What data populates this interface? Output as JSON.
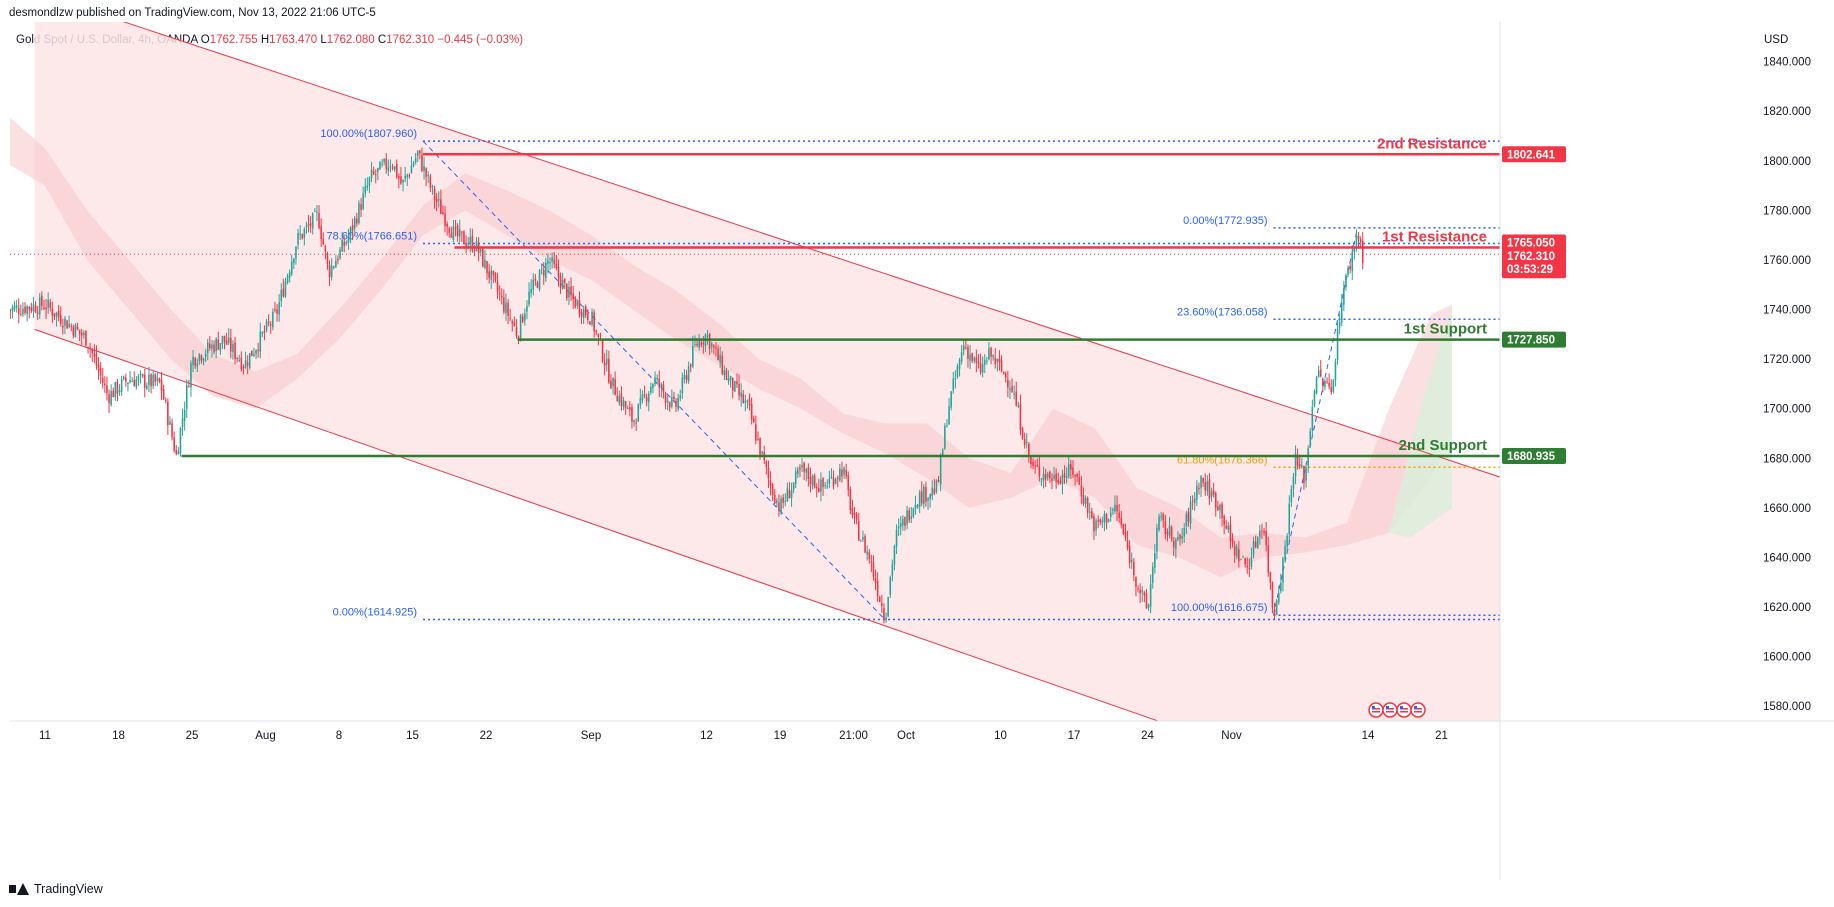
{
  "header": {
    "credit": "desmondlzw published on TradingView.com, Nov 13, 2022 21:06 UTC-5",
    "symbol": "Gold Spot / U.S. Dollar, 4h, OANDA",
    "ohlc": [
      {
        "k": "O",
        "v": "1762.755"
      },
      {
        "k": "H",
        "v": "1763.470"
      },
      {
        "k": "L",
        "v": "1762.080"
      },
      {
        "k": "C",
        "v": "1762.310"
      }
    ],
    "change": "−0.445 (−0.03%)",
    "currency": "USD"
  },
  "footer": {
    "brand": "TradingView"
  },
  "colors": {
    "up": "#26a69a",
    "down": "#f23645",
    "resistance": "#f23645",
    "support": "#2e7d32",
    "fib": "#2962ff",
    "fib618": "#f59f00",
    "channel": "#f23645",
    "channel_fill": "#fde4e6"
  },
  "chart_data": {
    "type": "candlestick",
    "timeframe": "4h",
    "ylim": [
      1574,
      1856
    ],
    "y_ticks": [
      1580,
      1600,
      1620,
      1640,
      1660,
      1680,
      1700,
      1720,
      1740,
      1760,
      1780,
      1800,
      1820,
      1840
    ],
    "x_ticks": [
      {
        "label": "11",
        "d": 0
      },
      {
        "label": "18",
        "d": 7
      },
      {
        "label": "25",
        "d": 14
      },
      {
        "label": "Aug",
        "d": 21
      },
      {
        "label": "8",
        "d": 28
      },
      {
        "label": "15",
        "d": 35
      },
      {
        "label": "22",
        "d": 42
      },
      {
        "label": "Sep",
        "d": 52
      },
      {
        "label": "12",
        "d": 63
      },
      {
        "label": "19",
        "d": 70
      },
      {
        "label": "21:00",
        "d": 77
      },
      {
        "label": "Oct",
        "d": 82
      },
      {
        "label": "10",
        "d": 91
      },
      {
        "label": "17",
        "d": 98
      },
      {
        "label": "24",
        "d": 105
      },
      {
        "label": "Nov",
        "d": 113
      },
      {
        "label": "14",
        "d": 126
      },
      {
        "label": "21",
        "d": 133
      }
    ],
    "price_path": [
      [
        -3.5,
        1740
      ],
      [
        0,
        1742
      ],
      [
        4,
        1728
      ],
      [
        6,
        1705
      ],
      [
        8,
        1712
      ],
      [
        11,
        1710
      ],
      [
        12.5,
        1681
      ],
      [
        14,
        1720
      ],
      [
        17,
        1728
      ],
      [
        19,
        1718
      ],
      [
        22,
        1738
      ],
      [
        24,
        1768
      ],
      [
        26,
        1778
      ],
      [
        27,
        1755
      ],
      [
        29,
        1770
      ],
      [
        31,
        1793
      ],
      [
        33,
        1800
      ],
      [
        34,
        1790
      ],
      [
        35.5,
        1803
      ],
      [
        37,
        1786
      ],
      [
        39,
        1770
      ],
      [
        41,
        1766
      ],
      [
        43,
        1748
      ],
      [
        45,
        1730
      ],
      [
        46,
        1745
      ],
      [
        48,
        1760
      ],
      [
        50,
        1745
      ],
      [
        52,
        1737
      ],
      [
        54,
        1710
      ],
      [
        56,
        1695
      ],
      [
        58,
        1712
      ],
      [
        60,
        1700
      ],
      [
        62,
        1726
      ],
      [
        63,
        1730
      ],
      [
        65,
        1712
      ],
      [
        67,
        1700
      ],
      [
        69,
        1670
      ],
      [
        70,
        1660
      ],
      [
        72,
        1675
      ],
      [
        74,
        1668
      ],
      [
        76,
        1676
      ],
      [
        77,
        1655
      ],
      [
        78.5,
        1640
      ],
      [
        80,
        1616
      ],
      [
        81,
        1648
      ],
      [
        83,
        1664
      ],
      [
        85,
        1668
      ],
      [
        86,
        1700
      ],
      [
        87.5,
        1726
      ],
      [
        89,
        1715
      ],
      [
        90,
        1722
      ],
      [
        92,
        1710
      ],
      [
        94,
        1676
      ],
      [
        96,
        1672
      ],
      [
        98,
        1675
      ],
      [
        100,
        1652
      ],
      [
        102,
        1660
      ],
      [
        104,
        1630
      ],
      [
        105,
        1618
      ],
      [
        106,
        1655
      ],
      [
        108,
        1645
      ],
      [
        110,
        1672
      ],
      [
        112,
        1660
      ],
      [
        113,
        1645
      ],
      [
        114.5,
        1636
      ],
      [
        116,
        1655
      ],
      [
        117,
        1617
      ],
      [
        118,
        1640
      ],
      [
        119,
        1680
      ],
      [
        120,
        1672
      ],
      [
        121,
        1714
      ],
      [
        122.5,
        1707
      ],
      [
        123.5,
        1745
      ],
      [
        124.5,
        1762
      ],
      [
        125,
        1772
      ],
      [
        125.5,
        1762
      ]
    ],
    "channel": {
      "upper": [
        [
          -1,
          1868
        ],
        [
          146,
          1662
        ]
      ],
      "lower": [
        [
          -1,
          1732
        ],
        [
          106,
          1574
        ]
      ]
    },
    "levels": [
      {
        "name": "2nd Resistance",
        "value": 1802.641,
        "tag": "1802.641",
        "kind": "resistance",
        "from_d": 36
      },
      {
        "name": "1st Resistance",
        "value": 1765.05,
        "tag": "1765.050",
        "kind": "resistance",
        "from_d": 39
      },
      {
        "name": "1st Support",
        "value": 1727.85,
        "tag": "1727.850",
        "kind": "support",
        "from_d": 45
      },
      {
        "name": "2nd Support",
        "value": 1680.935,
        "tag": "1680.935",
        "kind": "support",
        "from_d": 13
      }
    ],
    "last_price": {
      "value": "1762.310",
      "countdown": "03:53:29"
    },
    "fib_sets": [
      {
        "from": [
          36,
          1807.96
        ],
        "to": [
          80,
          1614.925
        ],
        "x_end": 152,
        "lines": [
          {
            "label": "100.00%(1807.960)",
            "value": 1807.96
          },
          {
            "label": "78.60%(1766.651)",
            "value": 1766.651
          },
          {
            "label": "0.00%(1614.925)",
            "value": 1614.925
          }
        ]
      },
      {
        "from": [
          117,
          1616.675
        ],
        "to": [
          125,
          1772.935
        ],
        "x_end": 152,
        "lines": [
          {
            "label": "100.00%(1616.675)",
            "value": 1616.675
          },
          {
            "label": "61.80%(1676.366)",
            "value": 1676.366
          },
          {
            "label": "23.60%(1736.058)",
            "value": 1736.058
          },
          {
            "label": "0.00%(1772.935)",
            "value": 1772.935
          }
        ]
      }
    ],
    "cloud": [
      [
        -4,
        1820,
        1800
      ],
      [
        0,
        1805,
        1790
      ],
      [
        4,
        1780,
        1760
      ],
      [
        8,
        1760,
        1740
      ],
      [
        12,
        1740,
        1720
      ],
      [
        16,
        1722,
        1705
      ],
      [
        20,
        1715,
        1700
      ],
      [
        24,
        1722,
        1712
      ],
      [
        28,
        1740,
        1728
      ],
      [
        32,
        1760,
        1748
      ],
      [
        36,
        1782,
        1770
      ],
      [
        40,
        1795,
        1780
      ],
      [
        44,
        1788,
        1770
      ],
      [
        48,
        1780,
        1760
      ],
      [
        52,
        1770,
        1752
      ],
      [
        56,
        1758,
        1740
      ],
      [
        60,
        1748,
        1728
      ],
      [
        64,
        1735,
        1718
      ],
      [
        68,
        1720,
        1708
      ],
      [
        72,
        1712,
        1700
      ],
      [
        76,
        1698,
        1690
      ],
      [
        80,
        1694,
        1682
      ],
      [
        84,
        1694,
        1672
      ],
      [
        88,
        1680,
        1660
      ],
      [
        92,
        1674,
        1664
      ],
      [
        96,
        1700,
        1672
      ],
      [
        100,
        1692,
        1664
      ],
      [
        104,
        1668,
        1645
      ],
      [
        108,
        1660,
        1640
      ],
      [
        112,
        1648,
        1632
      ],
      [
        116,
        1650,
        1640
      ],
      [
        120,
        1648,
        1642
      ],
      [
        124,
        1654,
        1645
      ],
      [
        128,
        1700,
        1650
      ],
      [
        132,
        1738,
        1672
      ],
      [
        134,
        1742,
        1690
      ]
    ],
    "events": 4
  }
}
